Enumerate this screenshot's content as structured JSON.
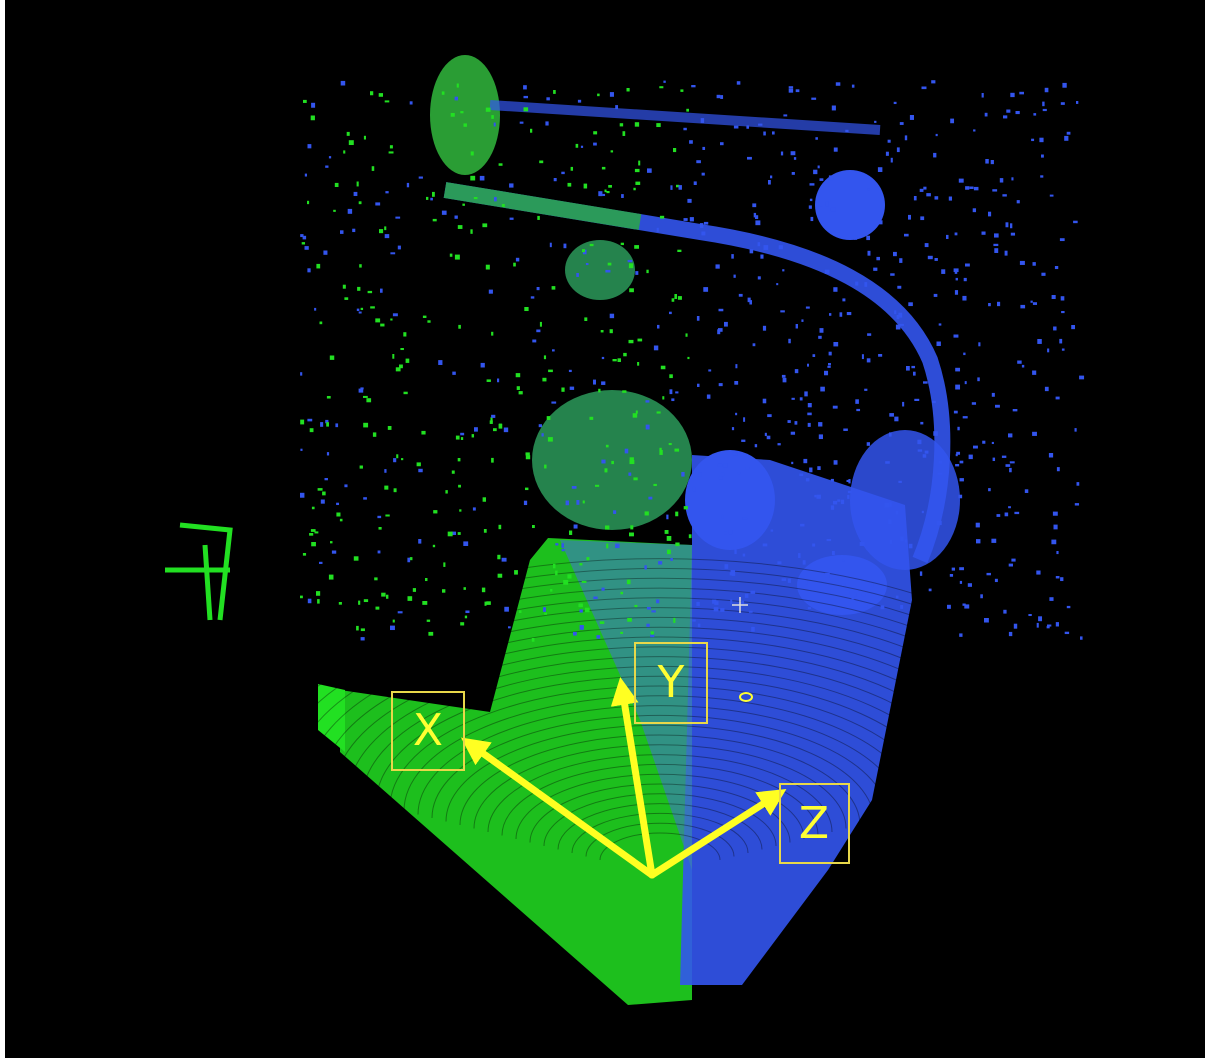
{
  "axes": {
    "x_label": "X",
    "y_label": "Y",
    "z_label": "Z"
  }
}
